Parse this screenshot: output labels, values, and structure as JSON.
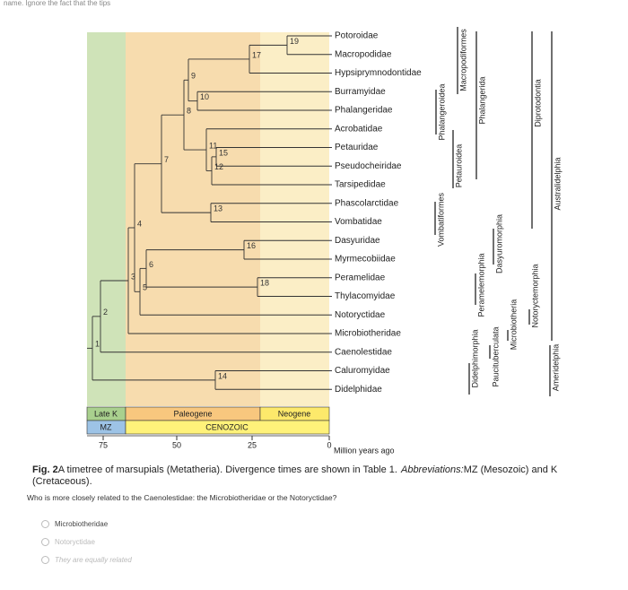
{
  "header": {
    "cropped_text": "name. Ignore the fact that the tips"
  },
  "figure": {
    "taxa": [
      "Potoroidae",
      "Macropodidae",
      "Hypsiprymnodontidae",
      "Burramyidae",
      "Phalangeridae",
      "Acrobatidae",
      "Petauridae",
      "Pseudocheiridae",
      "Tarsipedidae",
      "Phascolarctidae",
      "Vombatidae",
      "Dasyuridae",
      "Myrmecobiidae",
      "Peramelidae",
      "Thylacomyidae",
      "Notoryctidae",
      "Microbiotheridae",
      "Caenolestidae",
      "Caluromyidae",
      "Didelphidae"
    ],
    "node_labels": [
      "1",
      "2",
      "3",
      "4",
      "5",
      "6",
      "7",
      "8",
      "9",
      "10",
      "11",
      "12",
      "13",
      "14",
      "15",
      "16",
      "17",
      "18",
      "19"
    ],
    "clade_labels": [
      "Phalangeroidea",
      "Macropodiformes",
      "Petauroidea",
      "Phalangerida",
      "Vombatiformes",
      "Diprotodontia",
      "Australidelphia",
      "Dasyuromorphia",
      "Peramelemorphia",
      "Notoryctemorphia",
      "Microbiotheria",
      "Paucituberculata",
      "Didelphimorphia",
      "Ameridelphia"
    ],
    "periods": [
      "Late K",
      "Paleogene",
      "Neogene"
    ],
    "eras": [
      "MZ",
      "CENOZOIC"
    ],
    "time_ticks": [
      "75",
      "50",
      "25",
      "0"
    ],
    "time_unit": "Million years ago"
  },
  "caption": {
    "label": "Fig. 2",
    "text": "A timetree of marsupials (Metatheria). Divergence times are shown in Table 1.",
    "abbr_label": "Abbreviations:",
    "abbr_text": "MZ (Mesozoic) and K (Cretaceous)."
  },
  "question": "Who is more closely related to the Caenolestidae: the Microbiotheridae or the Notoryctidae?",
  "options": [
    "Microbiotheridae",
    "Notoryctidae",
    "They are equally related"
  ]
}
